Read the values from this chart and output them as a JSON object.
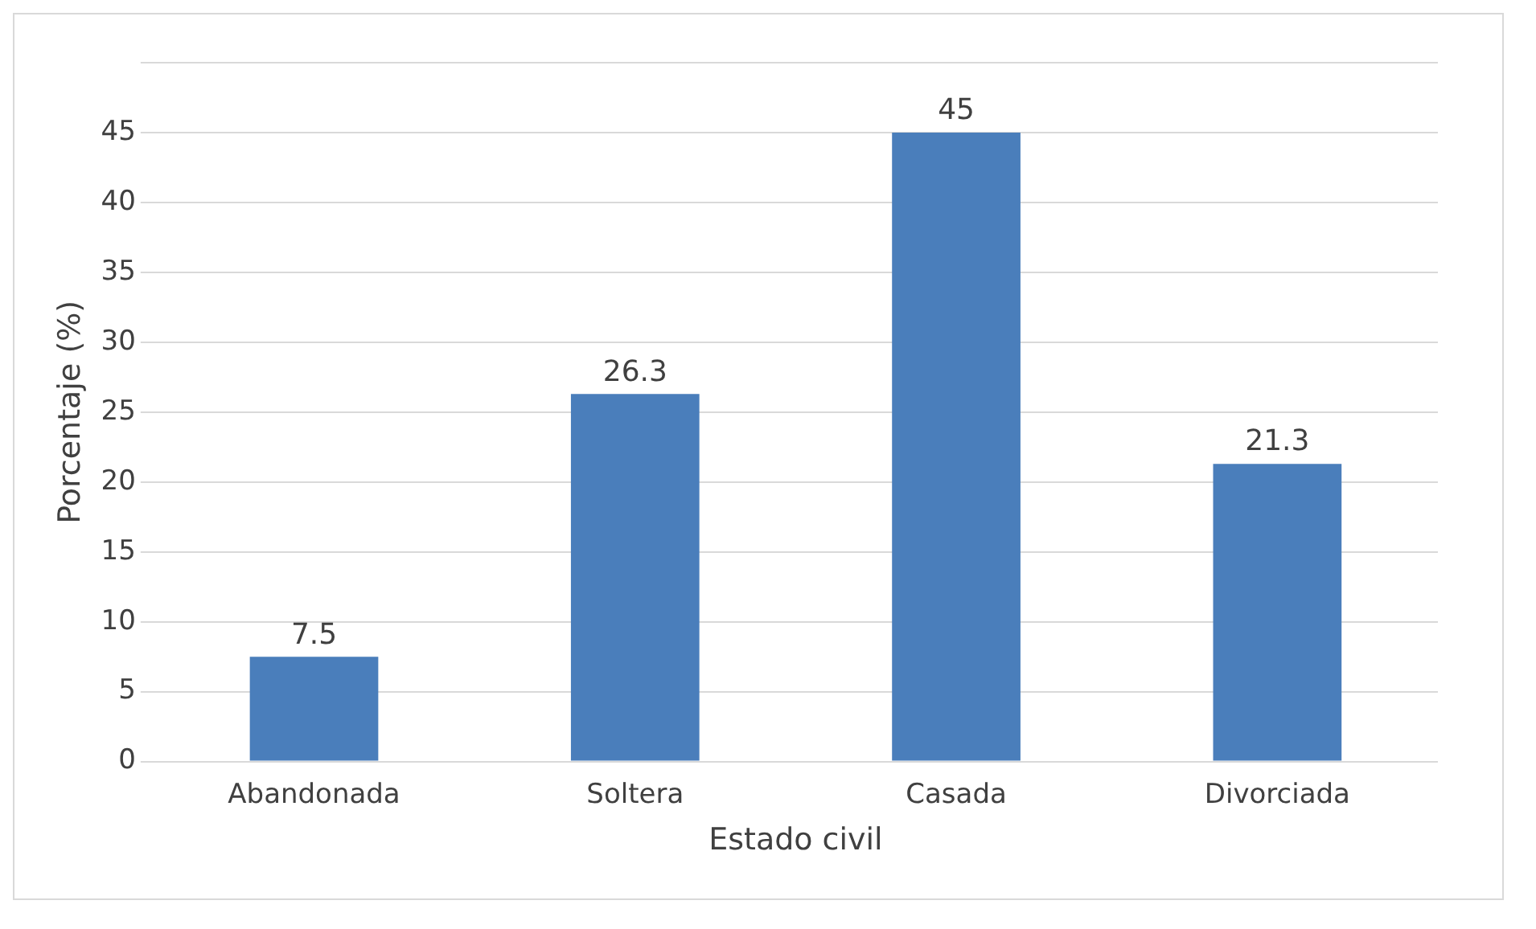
{
  "chart_data": {
    "type": "bar",
    "xlabel": "Estado civil",
    "ylabel": "Porcentaje (%)",
    "categories": [
      "Abandonada",
      "Soltera",
      "Casada",
      "Divorciada"
    ],
    "values": [
      7.5,
      26.3,
      45,
      21.3
    ],
    "color": "#4a7ebb",
    "ylim": [
      0,
      50
    ],
    "yticks": [
      0,
      5,
      10,
      15,
      20,
      25,
      30,
      35,
      40,
      45,
      {
        "value": 50,
        "label": null
      }
    ],
    "grid": "y",
    "legend": false,
    "data_labels": true
  }
}
